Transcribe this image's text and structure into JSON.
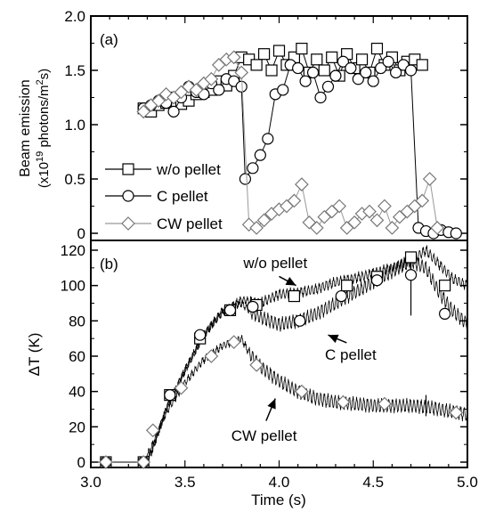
{
  "chart_data": [
    {
      "type": "line",
      "panel_label": "(a)",
      "ylabel_line1": "Beam emission",
      "ylabel_line2_prefix": "(x10",
      "ylabel_line2_exp": "19",
      "ylabel_line2_mid": " photons/m",
      "ylabel_line2_exp2": "2",
      "ylabel_line2_suffix": "s)",
      "xlim": [
        3.0,
        5.0
      ],
      "ylim": [
        0,
        2.0
      ],
      "yticks": [
        "0",
        "0.5",
        "1.0",
        "1.5",
        "2.0"
      ],
      "ytick_values": [
        0,
        0.5,
        1.0,
        1.5,
        2.0
      ],
      "legend_position": "bottom-left",
      "series": [
        {
          "name": "w/o pellet",
          "marker": "square",
          "x": [
            3.28,
            3.32,
            3.36,
            3.4,
            3.44,
            3.48,
            3.52,
            3.56,
            3.6,
            3.64,
            3.68,
            3.72,
            3.76,
            3.8,
            3.84,
            3.88,
            3.92,
            3.96,
            4.0,
            4.04,
            4.08,
            4.12,
            4.16,
            4.2,
            4.24,
            4.28,
            4.32,
            4.36,
            4.4,
            4.44,
            4.48,
            4.52,
            4.56,
            4.6,
            4.64,
            4.68,
            4.72,
            4.76
          ],
          "y": [
            1.15,
            1.12,
            1.18,
            1.2,
            1.25,
            1.19,
            1.22,
            1.28,
            1.3,
            1.32,
            1.4,
            1.36,
            1.45,
            1.62,
            1.6,
            1.55,
            1.65,
            1.5,
            1.68,
            1.55,
            1.62,
            1.7,
            1.48,
            1.6,
            1.5,
            1.62,
            1.45,
            1.65,
            1.52,
            1.6,
            1.48,
            1.7,
            1.55,
            1.62,
            1.5,
            1.58,
            1.6,
            1.55
          ]
        },
        {
          "name": "C pellet",
          "marker": "circle",
          "x": [
            3.28,
            3.32,
            3.36,
            3.4,
            3.44,
            3.48,
            3.52,
            3.56,
            3.6,
            3.64,
            3.68,
            3.72,
            3.76,
            3.8,
            3.82,
            3.86,
            3.9,
            3.94,
            3.98,
            4.02,
            4.06,
            4.1,
            4.14,
            4.18,
            4.22,
            4.26,
            4.3,
            4.34,
            4.38,
            4.42,
            4.46,
            4.5,
            4.54,
            4.58,
            4.62,
            4.66,
            4.7,
            4.74,
            4.78,
            4.82,
            4.86,
            4.9,
            4.94
          ],
          "y": [
            1.15,
            1.18,
            1.22,
            1.2,
            1.12,
            1.25,
            1.35,
            1.3,
            1.28,
            1.38,
            1.32,
            1.42,
            1.4,
            1.35,
            0.5,
            0.6,
            0.72,
            0.87,
            1.28,
            1.32,
            1.55,
            1.52,
            1.4,
            1.48,
            1.25,
            1.35,
            1.45,
            1.58,
            1.52,
            1.42,
            1.48,
            1.4,
            1.52,
            1.58,
            1.48,
            1.55,
            1.5,
            0.05,
            0.02,
            0.0,
            0.03,
            0.01,
            0.0
          ]
        },
        {
          "name": "CW pellet",
          "marker": "diamond",
          "x": [
            3.28,
            3.32,
            3.36,
            3.4,
            3.44,
            3.48,
            3.52,
            3.56,
            3.6,
            3.64,
            3.68,
            3.72,
            3.76,
            3.8,
            3.84,
            3.88,
            3.92,
            3.96,
            4.0,
            4.04,
            4.08,
            4.12,
            4.16,
            4.2,
            4.24,
            4.28,
            4.32,
            4.36,
            4.4,
            4.44,
            4.48,
            4.52,
            4.56,
            4.6,
            4.64,
            4.68,
            4.72,
            4.76,
            4.8,
            4.84
          ],
          "y": [
            1.12,
            1.18,
            1.22,
            1.28,
            1.25,
            1.3,
            1.35,
            1.32,
            1.38,
            1.42,
            1.55,
            1.6,
            1.62,
            1.48,
            0.08,
            0.05,
            0.12,
            0.18,
            0.22,
            0.25,
            0.3,
            0.45,
            0.1,
            0.05,
            0.15,
            0.2,
            0.25,
            0.05,
            0.1,
            0.18,
            0.2,
            0.12,
            0.25,
            0.05,
            0.15,
            0.2,
            0.25,
            0.3,
            0.5,
            0.05
          ]
        }
      ]
    },
    {
      "type": "line",
      "panel_label": "(b)",
      "xlabel": "Time (s)",
      "ylabel": "ΔT (K)",
      "xlim": [
        3.0,
        5.0
      ],
      "ylim": [
        0,
        125
      ],
      "xticks": [
        "3.0",
        "3.5",
        "4.0",
        "4.5",
        "5.0"
      ],
      "xtick_values": [
        3.0,
        3.5,
        4.0,
        4.5,
        5.0
      ],
      "yticks": [
        "0",
        "20",
        "40",
        "60",
        "80",
        "100",
        "120"
      ],
      "ytick_values": [
        0,
        20,
        40,
        60,
        80,
        100,
        120
      ],
      "annotations": [
        {
          "text": "w/o pellet",
          "x": 3.98,
          "y": 110,
          "arrow_to": [
            4.09,
            100
          ]
        },
        {
          "text": "C pellet",
          "x": 4.38,
          "y": 58,
          "arrow_to": [
            4.26,
            72
          ]
        },
        {
          "text": "CW pellet",
          "x": 3.92,
          "y": 12,
          "arrow_to": [
            3.98,
            36
          ]
        }
      ],
      "series": [
        {
          "name": "w/o pellet",
          "marker": "square",
          "x": [
            3.08,
            3.28,
            3.42,
            3.58,
            3.74,
            3.88,
            4.08,
            4.36,
            4.52,
            4.7,
            4.88
          ],
          "y": [
            0,
            0,
            38,
            70,
            86,
            89,
            94,
            100,
            105,
            116,
            100
          ],
          "trace_x": [
            3.0,
            3.28,
            3.32,
            3.4,
            3.5,
            3.6,
            3.7,
            3.8,
            3.9,
            4.0,
            4.1,
            4.2,
            4.3,
            4.4,
            4.5,
            4.6,
            4.7,
            4.78,
            4.85,
            4.92,
            5.0
          ],
          "trace_y": [
            0,
            0,
            5,
            30,
            52,
            72,
            85,
            92,
            90,
            95,
            96,
            98,
            102,
            104,
            107,
            110,
            114,
            120,
            112,
            104,
            100
          ]
        },
        {
          "name": "C pellet",
          "marker": "circle",
          "x": [
            3.08,
            3.28,
            3.42,
            3.58,
            3.74,
            3.86,
            4.11,
            4.33,
            4.52,
            4.7,
            4.88
          ],
          "y": [
            0,
            0,
            38,
            72,
            86,
            88,
            80,
            94,
            103,
            106,
            84
          ],
          "trace_x": [
            3.0,
            3.28,
            3.32,
            3.4,
            3.5,
            3.6,
            3.7,
            3.8,
            3.84,
            3.9,
            4.0,
            4.1,
            4.2,
            4.3,
            4.4,
            4.5,
            4.6,
            4.7,
            4.78,
            4.85,
            4.92,
            5.0
          ],
          "trace_y": [
            0,
            0,
            5,
            30,
            52,
            72,
            86,
            90,
            86,
            82,
            78,
            80,
            84,
            90,
            96,
            102,
            108,
            114,
            110,
            96,
            86,
            78
          ]
        },
        {
          "name": "CW pellet",
          "marker": "diamond",
          "x": [
            3.08,
            3.28,
            3.33,
            3.48,
            3.64,
            3.76,
            3.88,
            4.12,
            4.34,
            4.56,
            4.94
          ],
          "y": [
            0,
            0,
            18,
            42,
            60,
            68,
            55,
            40,
            34,
            33,
            28
          ],
          "trace_x": [
            3.0,
            3.28,
            3.32,
            3.4,
            3.5,
            3.6,
            3.7,
            3.8,
            3.84,
            3.9,
            4.0,
            4.1,
            4.2,
            4.3,
            4.4,
            4.5,
            4.6,
            4.7,
            4.8,
            4.9,
            5.0
          ],
          "trace_y": [
            0,
            0,
            8,
            28,
            45,
            58,
            66,
            70,
            62,
            54,
            46,
            40,
            36,
            34,
            33,
            32,
            32,
            32,
            31,
            29,
            27
          ]
        }
      ]
    }
  ]
}
